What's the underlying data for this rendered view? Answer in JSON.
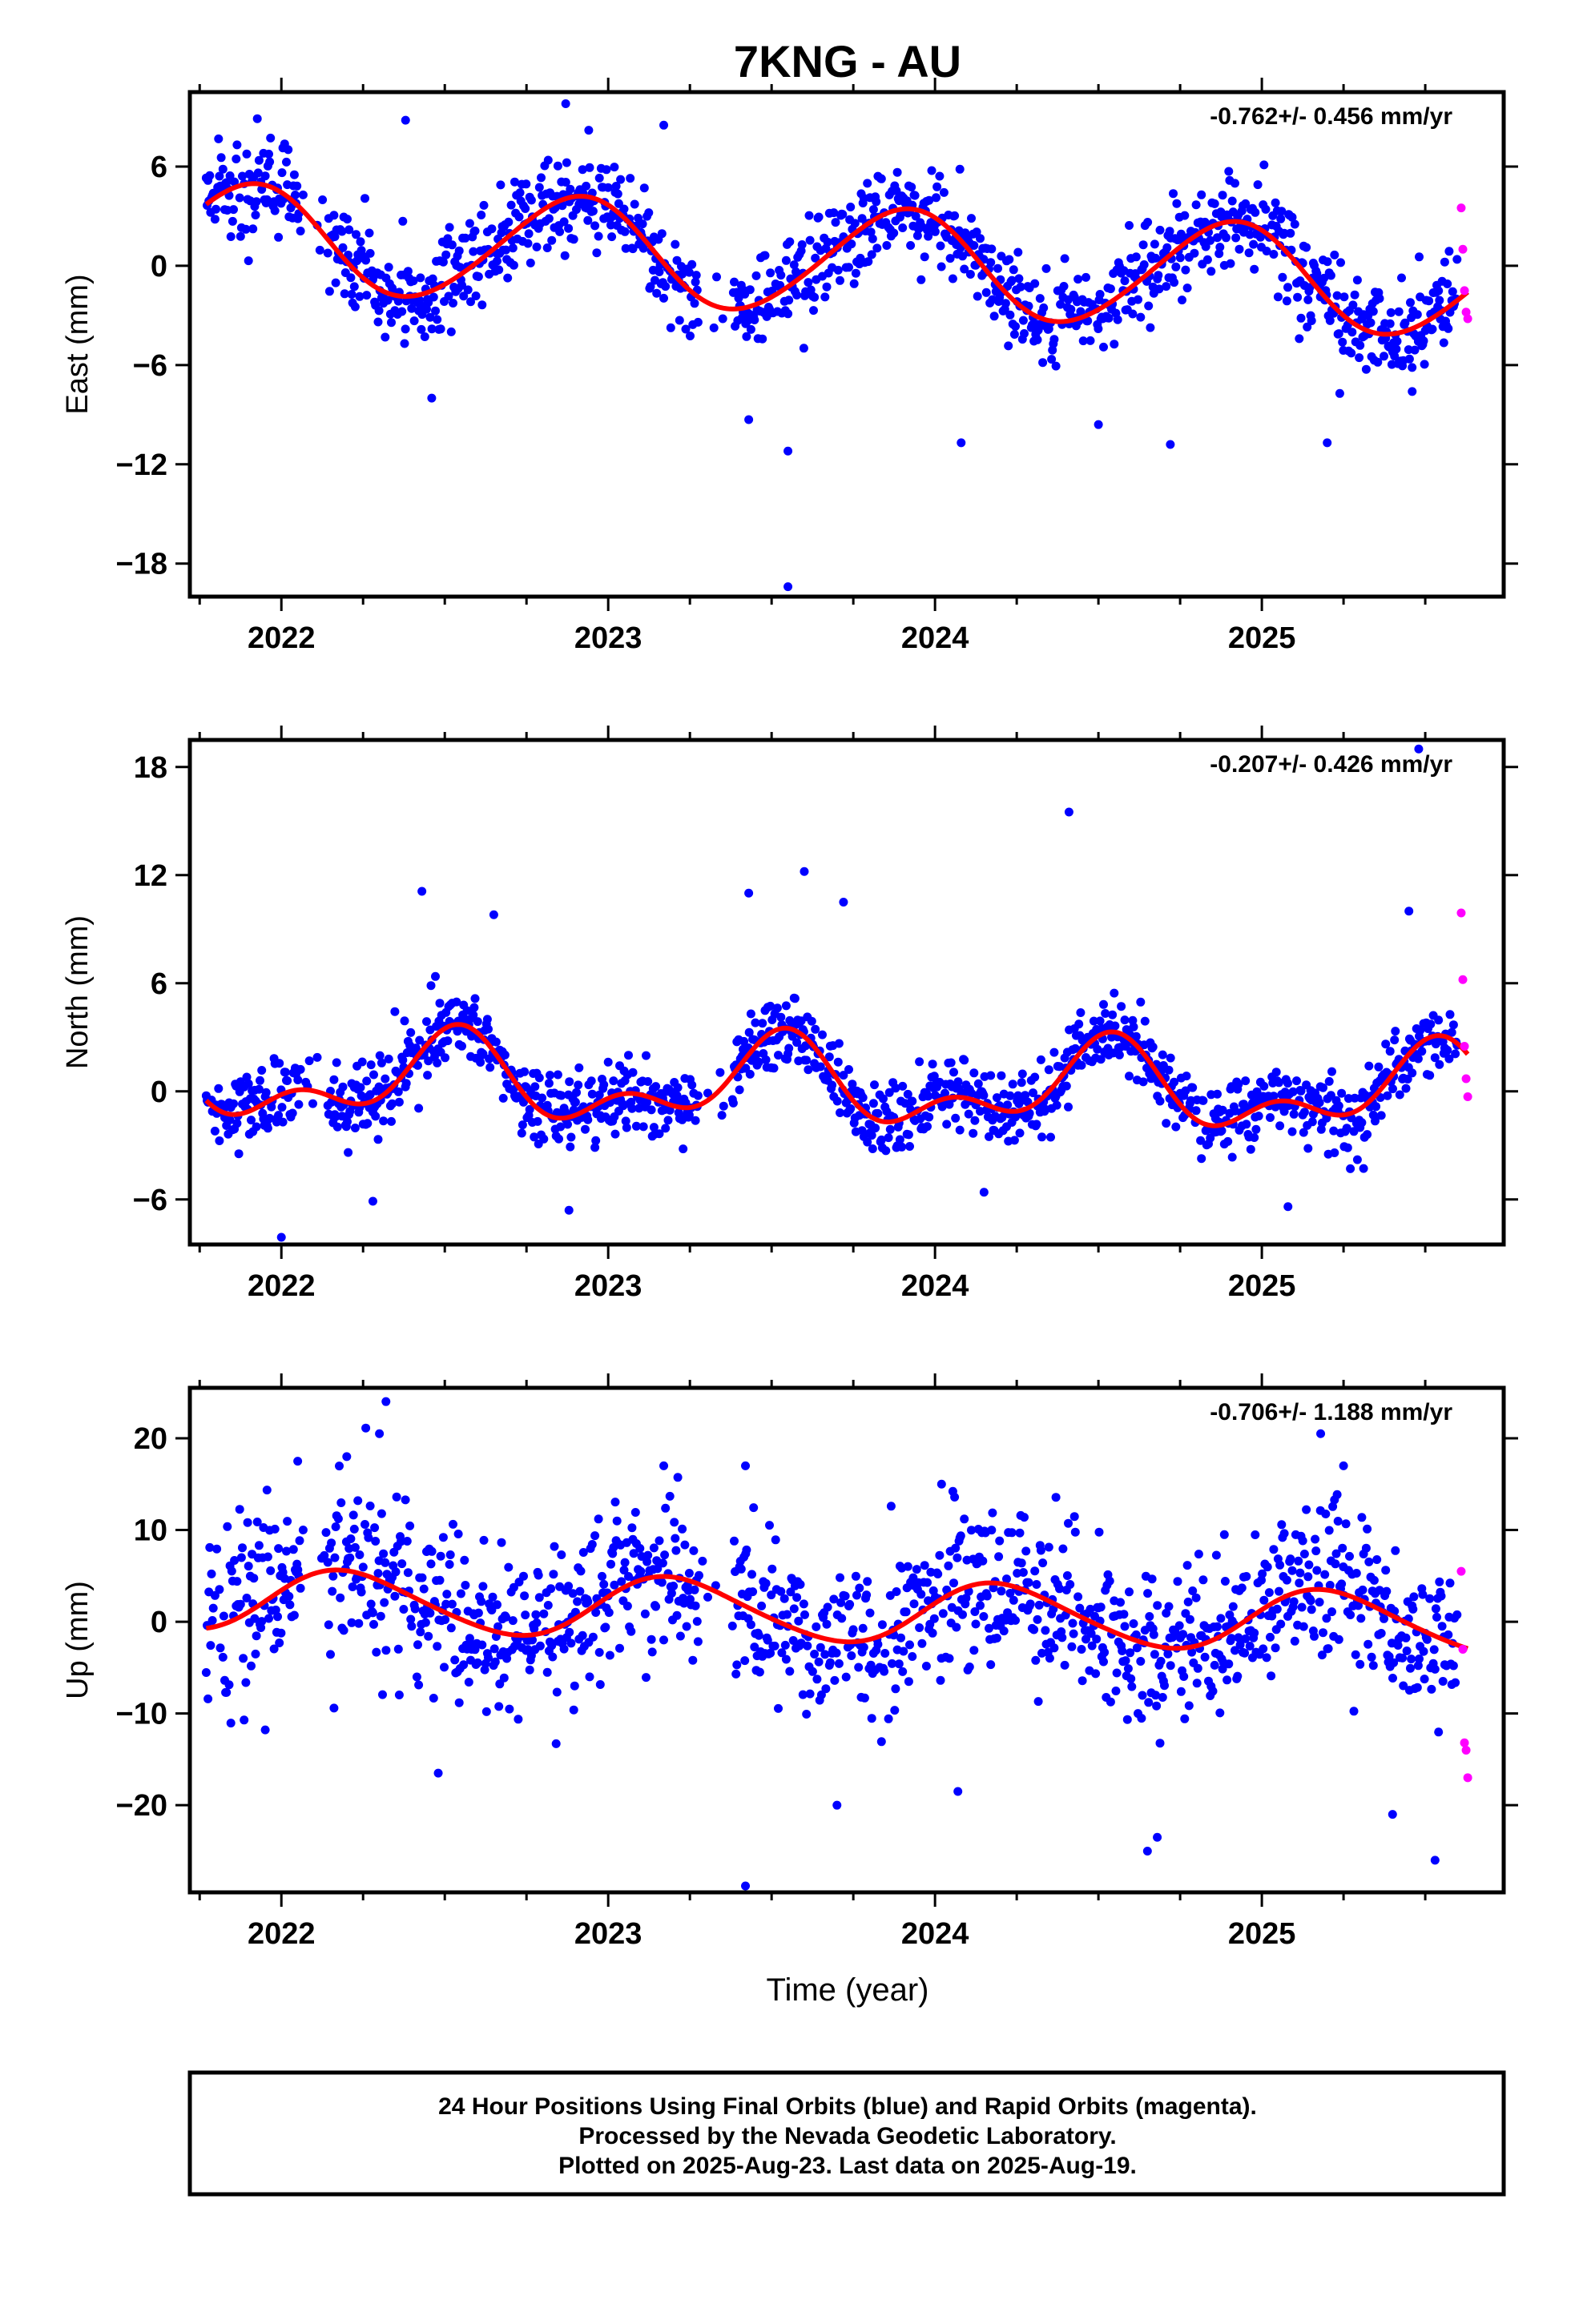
{
  "title": "7KNG - AU",
  "xlabel": "Time (year)",
  "notes": [
    "24 Hour Positions Using Final Orbits (blue) and Rapid Orbits (magenta).",
    "Processed by the Nevada Geodetic Laboratory.",
    "Plotted on 2025-Aug-23. Last data on 2025-Aug-19."
  ],
  "colors": {
    "final": "#0000ff",
    "rapid": "#ff00ff",
    "fit": "#ff0000"
  },
  "chart_data": [
    {
      "type": "scatter",
      "name": "east",
      "ylabel": "East (mm)",
      "rate": "-0.762+/- 0.456 mm/yr",
      "xlim": [
        2021.72,
        2025.74
      ],
      "ylim": [
        -20,
        10.5
      ],
      "xticks": [
        2022,
        2023,
        2024,
        2025
      ],
      "yticks": [
        6,
        0,
        -6,
        -12,
        -18
      ],
      "fit": {
        "mean": 0.3,
        "trend": -0.762,
        "annual_amp": 3.2,
        "annual_peak": 2021.9,
        "semi_amp": 0.25,
        "semi_peak": 2022.0
      },
      "noise_sd": 1.5,
      "outliers": [
        [
          2023.55,
          -19.4
        ],
        [
          2022.38,
          8.8
        ],
        [
          2022.87,
          9.8
        ],
        [
          2023.17,
          8.5
        ],
        [
          2023.55,
          -11.2
        ],
        [
          2024.08,
          -10.7
        ],
        [
          2024.72,
          -10.8
        ],
        [
          2025.2,
          -10.7
        ],
        [
          2022.46,
          -8.0
        ],
        [
          2023.43,
          -9.3
        ],
        [
          2024.5,
          -9.6
        ],
        [
          2025.46,
          -7.6
        ]
      ],
      "rapid": [
        [
          2025.61,
          3.5
        ],
        [
          2025.615,
          1.0
        ],
        [
          2025.62,
          -1.5
        ],
        [
          2025.625,
          -2.8
        ],
        [
          2025.63,
          -3.2
        ]
      ]
    },
    {
      "type": "scatter",
      "name": "north",
      "ylabel": "North (mm)",
      "rate": "-0.207+/- 0.426 mm/yr",
      "xlim": [
        2021.72,
        2025.74
      ],
      "ylim": [
        -8.5,
        19.5
      ],
      "xticks": [
        2022,
        2023,
        2024,
        2025
      ],
      "yticks": [
        18,
        12,
        6,
        0,
        -6
      ],
      "fit": {
        "mean": 0.3,
        "trend": -0.207,
        "annual_amp": 1.9,
        "annual_peak": 2022.52,
        "semi_amp": 1.3,
        "semi_peak": 2022.55
      },
      "noise_sd": 1.0,
      "outliers": [
        [
          2024.41,
          15.5
        ],
        [
          2025.48,
          19.0
        ],
        [
          2023.6,
          12.2
        ],
        [
          2023.43,
          11.0
        ],
        [
          2022.43,
          11.1
        ],
        [
          2023.72,
          10.5
        ],
        [
          2022.65,
          9.8
        ],
        [
          2025.45,
          10.0
        ],
        [
          2022.0,
          -8.1
        ],
        [
          2022.88,
          -6.6
        ],
        [
          2025.08,
          -6.4
        ],
        [
          2022.28,
          -6.1
        ],
        [
          2024.15,
          -5.6
        ]
      ],
      "rapid": [
        [
          2025.61,
          9.9
        ],
        [
          2025.615,
          6.2
        ],
        [
          2025.62,
          2.5
        ],
        [
          2025.625,
          0.7
        ],
        [
          2025.63,
          -0.3
        ]
      ]
    },
    {
      "type": "scatter",
      "name": "up",
      "ylabel": "Up (mm)",
      "rate": "-0.706+/- 1.188 mm/yr",
      "xlim": [
        2021.72,
        2025.74
      ],
      "ylim": [
        -29.5,
        25.5
      ],
      "xticks": [
        2022,
        2023,
        2024,
        2025
      ],
      "yticks": [
        20,
        10,
        0,
        -10,
        -20
      ],
      "fit": {
        "mean": 1.1,
        "trend": -0.706,
        "annual_amp": 3.3,
        "annual_peak": 2022.2,
        "semi_amp": 0.35,
        "semi_peak": 2022.1
      },
      "noise_sd": 4.5,
      "outliers": [
        [
          2022.32,
          24.0
        ],
        [
          2022.3,
          20.5
        ],
        [
          2023.42,
          -28.8
        ],
        [
          2025.53,
          -26.0
        ],
        [
          2024.65,
          -25.0
        ],
        [
          2024.68,
          -23.5
        ],
        [
          2022.48,
          -16.5
        ],
        [
          2023.7,
          -20.0
        ],
        [
          2024.07,
          -18.5
        ],
        [
          2025.4,
          -21.0
        ],
        [
          2022.05,
          17.5
        ],
        [
          2023.17,
          17.0
        ],
        [
          2023.42,
          17.0
        ],
        [
          2025.18,
          20.5
        ],
        [
          2025.25,
          17.0
        ],
        [
          2024.02,
          15.0
        ],
        [
          2022.2,
          18.0
        ]
      ],
      "rapid": [
        [
          2025.61,
          5.5
        ],
        [
          2025.615,
          -3.0
        ],
        [
          2025.62,
          -13.2
        ],
        [
          2025.625,
          -14.0
        ],
        [
          2025.63,
          -17.0
        ]
      ]
    }
  ]
}
